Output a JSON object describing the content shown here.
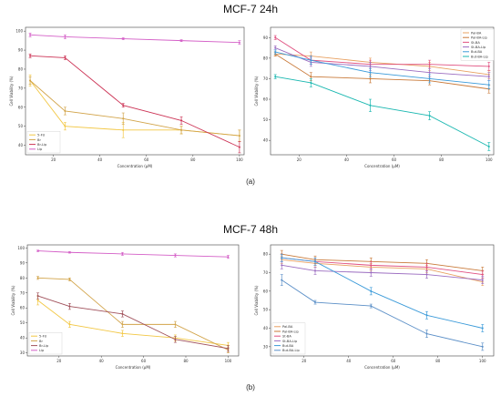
{
  "titles": {
    "top": "MCF-7 24h",
    "bottom": "MCF-7 48h"
  },
  "captions": {
    "a": "(a)",
    "b": "(b)"
  },
  "colors": {
    "5fu": "#f2c744",
    "br": "#d2a44a",
    "brlip": "#cc3355",
    "lip": "#d45fc7",
    "palbr": "#e8a060",
    "palbrlip": "#c97a3a",
    "stbr": "#e05080",
    "stbrlip": "#9b6cc0",
    "butbr": "#3a9ad9",
    "butbrlip": "#19b7b0"
  },
  "chart_data": [
    {
      "id": "24h-left",
      "type": "line",
      "x": [
        10,
        25,
        50,
        75,
        100
      ],
      "xlabel": "Concentration (µM)",
      "ylabel": "Cell Viability (%)",
      "xlim": [
        8,
        102
      ],
      "ylim": [
        35,
        102
      ],
      "xticks": [
        20,
        40,
        60,
        80,
        100
      ],
      "yticks": [
        40,
        50,
        60,
        70,
        80,
        90,
        100
      ],
      "legend": "bottom-left",
      "series": [
        {
          "name": "5-FU",
          "color": "#f2c744",
          "values": [
            74,
            50,
            48,
            48,
            45
          ],
          "err": [
            3,
            2,
            4,
            2,
            3
          ]
        },
        {
          "name": "Br",
          "color": "#d2a44a",
          "values": [
            74,
            58,
            54,
            48,
            45
          ],
          "err": [
            2,
            2,
            3,
            2,
            3
          ]
        },
        {
          "name": "Br-Lip",
          "color": "#cc3355",
          "values": [
            87,
            86,
            61,
            53,
            39
          ],
          "err": [
            1,
            1,
            1,
            2,
            3
          ]
        },
        {
          "name": "Lip",
          "color": "#d45fc7",
          "values": [
            98,
            97,
            96,
            95,
            94
          ],
          "err": [
            1,
            1,
            0.5,
            0.5,
            1
          ]
        }
      ]
    },
    {
      "id": "24h-right",
      "type": "line",
      "x": [
        10,
        25,
        50,
        75,
        100
      ],
      "xlabel": "Concentration (µM)",
      "ylabel": "Cell Viability (%)",
      "xlim": [
        8,
        102
      ],
      "ylim": [
        33,
        95
      ],
      "xticks": [
        20,
        40,
        60,
        80,
        100
      ],
      "yticks": [
        40,
        50,
        60,
        70,
        80,
        90
      ],
      "legend": "top-right",
      "series": [
        {
          "name": "Pal-BA",
          "color": "#e8a060",
          "values": [
            82,
            81,
            78,
            76,
            72
          ],
          "err": [
            1,
            2,
            2,
            2,
            2
          ]
        },
        {
          "name": "Pal-BA-Lip",
          "color": "#c97a3a",
          "values": [
            82,
            71,
            70,
            69,
            65
          ],
          "err": [
            1,
            2,
            2,
            2,
            2
          ]
        },
        {
          "name": "St-BA",
          "color": "#e05080",
          "values": [
            90,
            79,
            77,
            77,
            76
          ],
          "err": [
            1,
            2,
            2,
            2,
            2
          ]
        },
        {
          "name": "St-BA-Lip",
          "color": "#9b6cc0",
          "values": [
            85,
            78,
            76,
            73,
            71
          ],
          "err": [
            1,
            2,
            2,
            2,
            2
          ]
        },
        {
          "name": "But-BA",
          "color": "#3a9ad9",
          "values": [
            83,
            79,
            73,
            70,
            67
          ],
          "err": [
            1,
            2,
            2,
            2,
            2
          ]
        },
        {
          "name": "But-BA-Lip",
          "color": "#19b7b0",
          "values": [
            71,
            68,
            57,
            52,
            37
          ],
          "err": [
            1,
            2,
            3,
            2,
            2
          ]
        }
      ]
    },
    {
      "id": "48h-left",
      "type": "line",
      "x": [
        10,
        25,
        50,
        75,
        100
      ],
      "xlabel": "Concentration (µM)",
      "ylabel": "Cell Viability (%)",
      "xlim": [
        5,
        105
      ],
      "ylim": [
        28,
        102
      ],
      "xticks": [
        20,
        40,
        60,
        80,
        100
      ],
      "yticks": [
        30,
        40,
        50,
        60,
        70,
        80,
        90,
        100
      ],
      "legend": "bottom-left",
      "series": [
        {
          "name": "5-FU",
          "color": "#f2c744",
          "values": [
            65,
            49,
            43,
            40,
            35
          ],
          "err": [
            3,
            2,
            2,
            2,
            2
          ]
        },
        {
          "name": "Br",
          "color": "#d2a44a",
          "values": [
            80,
            79,
            49,
            49,
            32
          ],
          "err": [
            1,
            1,
            2,
            2,
            2
          ]
        },
        {
          "name": "Br-Lip",
          "color": "#a0505a",
          "values": [
            68,
            61,
            56,
            39,
            33
          ],
          "err": [
            2,
            2,
            2,
            2,
            2
          ]
        },
        {
          "name": "Lip",
          "color": "#d45fc7",
          "values": [
            98,
            97,
            96,
            95,
            94
          ],
          "err": [
            0.5,
            0.5,
            1,
            1,
            1
          ]
        }
      ]
    },
    {
      "id": "48h-right",
      "type": "line",
      "x": [
        10,
        25,
        50,
        75,
        100
      ],
      "xlabel": "Concentration (µM)",
      "ylabel": "Cell Viability (%)",
      "xlim": [
        5,
        105
      ],
      "ylim": [
        25,
        85
      ],
      "xticks": [
        20,
        40,
        60,
        80,
        100
      ],
      "yticks": [
        30,
        40,
        50,
        60,
        70,
        80
      ],
      "legend": "bottom-left",
      "series": [
        {
          "name": "Pal-BA",
          "color": "#e8a060",
          "values": [
            77,
            75,
            73,
            72,
            65
          ],
          "err": [
            2,
            2,
            2,
            2,
            2
          ]
        },
        {
          "name": "Pal-BA-Lip",
          "color": "#c97a3a",
          "values": [
            80,
            77,
            76,
            75,
            71
          ],
          "err": [
            2,
            2,
            2,
            2,
            2
          ]
        },
        {
          "name": "St-BA",
          "color": "#e05080",
          "values": [
            78,
            76,
            74,
            73,
            69
          ],
          "err": [
            2,
            2,
            2,
            2,
            2
          ]
        },
        {
          "name": "St-BA-Lip",
          "color": "#9b6cc0",
          "values": [
            74,
            71,
            70,
            69,
            66
          ],
          "err": [
            2,
            2,
            2,
            2,
            2
          ]
        },
        {
          "name": "But-BA",
          "color": "#3a9ad9",
          "values": [
            78,
            76,
            60,
            47,
            40
          ],
          "err": [
            2,
            2,
            2,
            2,
            2
          ]
        },
        {
          "name": "But-BA-Lip",
          "color": "#5b8fc7",
          "values": [
            66,
            54,
            52,
            37,
            30
          ],
          "err": [
            3,
            1,
            1,
            2,
            2
          ]
        }
      ]
    }
  ]
}
